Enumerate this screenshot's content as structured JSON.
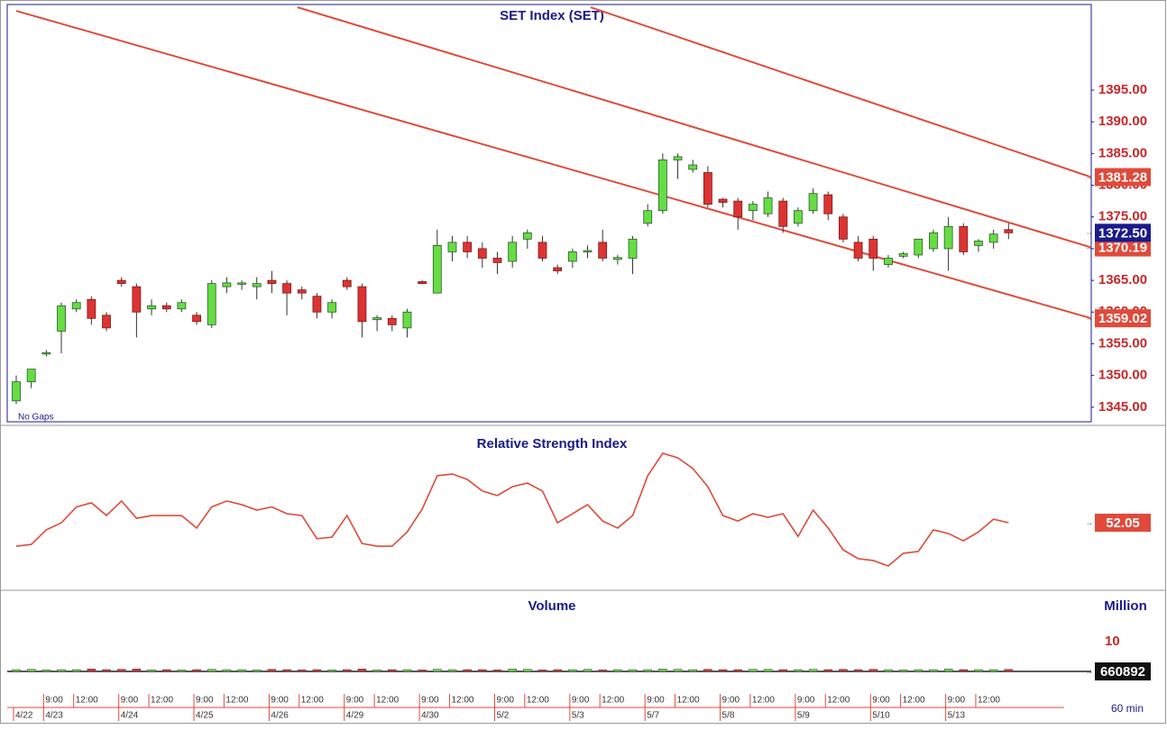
{
  "chart_data": {
    "type": "candlestick",
    "title": "SET Index (SET)",
    "note": "No Gaps",
    "up_color": "#66dd44",
    "down_color": "#dd3333",
    "channel_color": "#e04a3a",
    "xlim": [
      -0.6,
      71.5
    ],
    "ylim": [
      1342.7,
      1408.5
    ],
    "yticks": [
      {
        "value": 1345,
        "label": "1345.00"
      },
      {
        "value": 1350,
        "label": "1350.00"
      },
      {
        "value": 1355,
        "label": "1355.00"
      },
      {
        "value": 1360,
        "label": "1360.00"
      },
      {
        "value": 1365,
        "label": "1365.00"
      },
      {
        "value": 1370,
        "label": "1370.00"
      },
      {
        "value": 1375,
        "label": "1375.00"
      },
      {
        "value": 1380,
        "label": "1380.00"
      },
      {
        "value": 1385,
        "label": "1385.00"
      },
      {
        "value": 1390,
        "label": "1390.00"
      },
      {
        "value": 1395,
        "label": "1395.00"
      }
    ],
    "candles": [
      [
        1346,
        1350,
        1345.5,
        1349
      ],
      [
        1349,
        1351,
        1348,
        1351
      ],
      [
        1353.5,
        1354,
        1353,
        1353.6
      ],
      [
        1357,
        1361.5,
        1353.5,
        1361
      ],
      [
        1360.5,
        1362,
        1360,
        1361.5
      ],
      [
        1362,
        1362.5,
        1358,
        1359
      ],
      [
        1359.5,
        1360,
        1357,
        1357.5
      ],
      [
        1365,
        1365.5,
        1364,
        1364.5
      ],
      [
        1364,
        1364.5,
        1356,
        1360
      ],
      [
        1360.5,
        1362,
        1359.5,
        1361
      ],
      [
        1361,
        1361.5,
        1360,
        1360.5
      ],
      [
        1360.5,
        1362,
        1360,
        1361.5
      ],
      [
        1359.5,
        1360,
        1358,
        1358.5
      ],
      [
        1358,
        1365,
        1357.5,
        1364.5
      ],
      [
        1364,
        1365.5,
        1363,
        1364.6
      ],
      [
        1364.4,
        1365,
        1363.5,
        1364.6
      ],
      [
        1364,
        1365.5,
        1362,
        1364.5
      ],
      [
        1365,
        1366.5,
        1363,
        1364.5
      ],
      [
        1364.5,
        1365,
        1359.5,
        1363
      ],
      [
        1363.5,
        1364,
        1362,
        1363
      ],
      [
        1362.5,
        1363,
        1359,
        1360
      ],
      [
        1360,
        1362,
        1359,
        1361.5
      ],
      [
        1365,
        1365.5,
        1363.5,
        1364
      ],
      [
        1364,
        1364.5,
        1356,
        1358.5
      ],
      [
        1358.8,
        1359.5,
        1357,
        1359.1
      ],
      [
        1359,
        1359.5,
        1357,
        1358
      ],
      [
        1357.5,
        1360.5,
        1356,
        1360
      ],
      [
        1364.8,
        1365,
        1364.4,
        1364.5
      ],
      [
        1363,
        1373,
        1363,
        1370.5
      ],
      [
        1369.5,
        1372,
        1368,
        1371
      ],
      [
        1371,
        1372,
        1368.5,
        1369.5
      ],
      [
        1370,
        1371,
        1367,
        1368.5
      ],
      [
        1368.5,
        1369.5,
        1366,
        1367.8
      ],
      [
        1368,
        1372,
        1367,
        1371
      ],
      [
        1371.5,
        1373,
        1370,
        1372.5
      ],
      [
        1371,
        1372,
        1368,
        1368.5
      ],
      [
        1367,
        1367.5,
        1366,
        1366.5
      ],
      [
        1368,
        1370,
        1367,
        1369.5
      ],
      [
        1369.5,
        1370.5,
        1368.5,
        1369.7
      ],
      [
        1371,
        1373,
        1368,
        1368.5
      ],
      [
        1368.3,
        1369,
        1367.5,
        1368.6
      ],
      [
        1368.5,
        1372,
        1366,
        1371.5
      ],
      [
        1374,
        1377,
        1373.5,
        1376
      ],
      [
        1376,
        1385,
        1375.5,
        1384
      ],
      [
        1384,
        1385,
        1381,
        1384.5
      ],
      [
        1382.5,
        1384,
        1382,
        1383.2
      ],
      [
        1382,
        1383,
        1376.5,
        1377
      ],
      [
        1377.8,
        1378,
        1376.5,
        1377.3
      ],
      [
        1377.5,
        1378,
        1373,
        1375
      ],
      [
        1376,
        1377.5,
        1374.5,
        1377
      ],
      [
        1375.5,
        1379,
        1375,
        1378
      ],
      [
        1377.5,
        1378,
        1372.5,
        1373.5
      ],
      [
        1374,
        1376.5,
        1373.5,
        1376
      ],
      [
        1376,
        1379.5,
        1375.5,
        1378.7
      ],
      [
        1378.5,
        1379,
        1374.5,
        1375.5
      ],
      [
        1375,
        1375.5,
        1371,
        1371.5
      ],
      [
        1371,
        1372,
        1368,
        1368.5
      ],
      [
        1371.5,
        1372,
        1366.5,
        1368.5
      ],
      [
        1367.5,
        1369,
        1367,
        1368.5
      ],
      [
        1368.8,
        1369.5,
        1368.5,
        1369.2
      ],
      [
        1369,
        1371.5,
        1368.5,
        1371.5
      ],
      [
        1370,
        1373,
        1369.5,
        1372.5
      ],
      [
        1370,
        1375,
        1366.5,
        1373.5
      ],
      [
        1373.5,
        1374,
        1369,
        1369.5
      ],
      [
        1370.5,
        1371.5,
        1369.5,
        1371.2
      ],
      [
        1371,
        1373,
        1370,
        1372.3
      ],
      [
        1373,
        1374,
        1371.5,
        1372.5
      ]
    ],
    "last": {
      "value": 1372.5,
      "label": "1372.50"
    },
    "channels": [
      {
        "x": [
          0,
          71.5
        ],
        "values": [
          1407.5,
          1359.02
        ],
        "end_label": "1359.02"
      },
      {
        "x": [
          18.7,
          71.5
        ],
        "values": [
          1408.07,
          1370.19
        ],
        "end_label": "1370.19"
      },
      {
        "x": [
          38.2,
          71.5
        ],
        "values": [
          1408.07,
          1381.28
        ],
        "end_label": "1381.28"
      }
    ],
    "rsi": {
      "title": "Relative Strength Index",
      "color": "#e04a3a",
      "ylim": [
        22.3,
        92.5
      ],
      "values": [
        41.7,
        42.5,
        48.9,
        52,
        59,
        60.8,
        55.2,
        61.6,
        54,
        55.2,
        55.2,
        55.2,
        49.7,
        59,
        61.6,
        60,
        57.6,
        59,
        56,
        55.2,
        45,
        45.7,
        55.2,
        42.9,
        41.7,
        41.7,
        48,
        58,
        72.7,
        73.5,
        71.1,
        66,
        64,
        67.9,
        69.5,
        66,
        52,
        56,
        60,
        52.8,
        49.7,
        55.2,
        72.7,
        82.6,
        80.6,
        75.9,
        67.9,
        55.2,
        52.8,
        56,
        54.4,
        56,
        46,
        57.6,
        49.7,
        40.1,
        36.2,
        35.4,
        33,
        38.6,
        39.4,
        48.9,
        47.3,
        44.1,
        48,
        53.6,
        52.05
      ],
      "last_label": "52.05"
    },
    "volume": {
      "title": "Volume",
      "unit": "Million",
      "ylim": [
        0,
        25.75
      ],
      "yticks": [
        10
      ],
      "values": [
        0.6,
        0.7,
        0.5,
        0.6,
        0.6,
        0.8,
        0.6,
        0.7,
        0.8,
        0.5,
        0.6,
        0.5,
        0.6,
        0.7,
        0.6,
        0.6,
        0.5,
        0.7,
        0.6,
        0.5,
        0.6,
        0.5,
        0.6,
        0.8,
        0.5,
        0.6,
        0.6,
        0.5,
        0.7,
        0.6,
        0.6,
        0.6,
        0.5,
        0.8,
        0.7,
        0.5,
        0.6,
        0.6,
        0.7,
        0.5,
        0.6,
        0.6,
        0.6,
        0.8,
        0.7,
        0.6,
        0.7,
        0.6,
        0.6,
        0.7,
        0.7,
        0.6,
        0.6,
        0.7,
        0.6,
        0.7,
        0.6,
        0.7,
        0.6,
        0.5,
        0.6,
        0.6,
        0.8,
        0.6,
        0.6,
        0.6,
        0.660892
      ],
      "last_label": "660892"
    },
    "interval": "60 min",
    "times": [
      null,
      null,
      "9:00",
      null,
      "12:00",
      null,
      null,
      "9:00",
      null,
      "12:00",
      null,
      null,
      "9:00",
      null,
      "12:00",
      null,
      null,
      "9:00",
      null,
      "12:00",
      null,
      null,
      "9:00",
      null,
      "12:00",
      null,
      null,
      "9:00",
      null,
      "12:00",
      null,
      null,
      "9:00",
      null,
      "12:00",
      null,
      null,
      "9:00",
      null,
      "12:00",
      null,
      null,
      "9:00",
      null,
      "12:00",
      null,
      null,
      "9:00",
      null,
      "12:00",
      null,
      null,
      "9:00",
      null,
      "12:00",
      null,
      null,
      "9:00",
      null,
      "12:00",
      null,
      null,
      "9:00",
      null,
      "12:00",
      null,
      null
    ],
    "dates": [
      "4/22",
      null,
      "4/23",
      null,
      null,
      null,
      null,
      "4/24",
      null,
      null,
      null,
      null,
      "4/25",
      null,
      null,
      null,
      null,
      "4/26",
      null,
      null,
      null,
      null,
      "4/29",
      null,
      null,
      null,
      null,
      "4/30",
      null,
      null,
      null,
      null,
      "5/2",
      null,
      null,
      null,
      null,
      "5/3",
      null,
      null,
      null,
      null,
      "5/7",
      null,
      null,
      null,
      null,
      "5/8",
      null,
      null,
      null,
      null,
      "5/9",
      null,
      null,
      null,
      null,
      "5/10",
      null,
      null,
      null,
      null,
      "5/13",
      null,
      null,
      null,
      null
    ]
  }
}
